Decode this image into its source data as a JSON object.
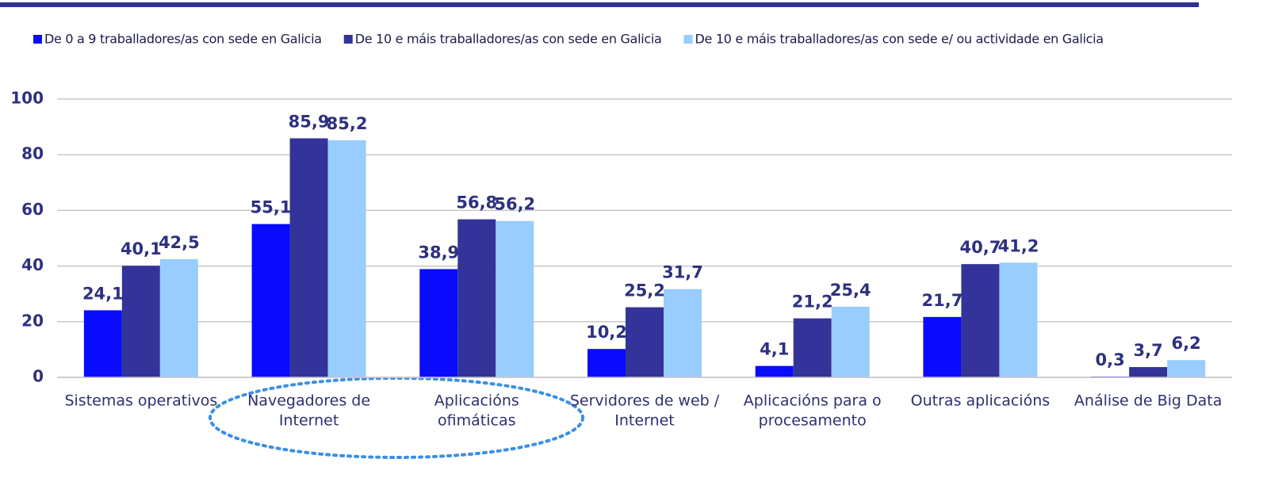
{
  "chart_data": {
    "type": "bar",
    "categories": [
      [
        "Sistemas operativos"
      ],
      [
        "Navegadores de",
        "Internet"
      ],
      [
        "Aplicacións",
        "ofimáticas"
      ],
      [
        "Servidores de web /",
        "Internet"
      ],
      [
        "Aplicacións para o",
        "procesamento"
      ],
      [
        "Outras aplicacións"
      ],
      [
        "Análise de Big Data"
      ]
    ],
    "series": [
      {
        "name": "De 0 a 9 traballadores/as con sede en Galicia",
        "color": "#0a0aff",
        "values": [
          24.1,
          55.1,
          38.9,
          10.2,
          4.1,
          21.7,
          0.3
        ],
        "value_labels": [
          "24,1",
          "55,1",
          "38,9",
          "10,2",
          "4,1",
          "21,7",
          "0,3"
        ]
      },
      {
        "name": "De 10 e máis traballadores/as con sede en Galicia",
        "color": "#333399",
        "values": [
          40.1,
          85.9,
          56.8,
          25.2,
          21.2,
          40.7,
          3.7
        ],
        "value_labels": [
          "40,1",
          "85,9",
          "56,8",
          "25,2",
          "21,2",
          "40,7",
          "3,7"
        ]
      },
      {
        "name": "De 10 e máis traballadores/as con sede e/ ou actividade en Galicia",
        "color": "#99ccff",
        "values": [
          42.5,
          85.2,
          56.2,
          31.7,
          25.4,
          41.2,
          6.2
        ],
        "value_labels": [
          "42,5",
          "85,2",
          "56,2",
          "31,7",
          "25,4",
          "41,2",
          "6,2"
        ]
      }
    ],
    "ylim": [
      0,
      100
    ],
    "yticks": [
      0,
      20,
      40,
      60,
      80,
      100
    ],
    "grid": true,
    "legend": "top"
  }
}
